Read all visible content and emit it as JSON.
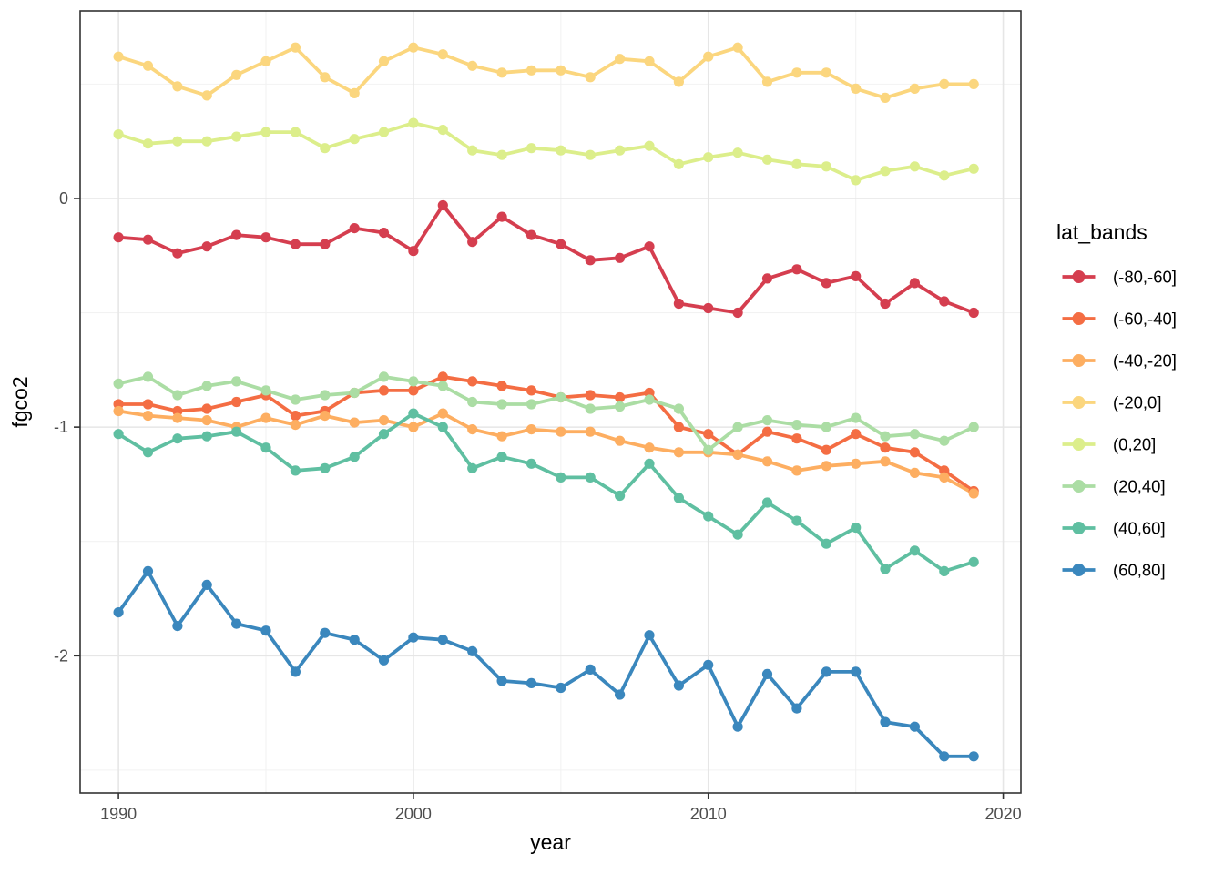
{
  "chart_data": {
    "type": "line",
    "title": "",
    "xlabel": "year",
    "ylabel": "fgco2",
    "legend_title": "lat_bands",
    "legend_position": "right",
    "grid": "on",
    "x": [
      1990,
      1991,
      1992,
      1993,
      1994,
      1995,
      1996,
      1997,
      1998,
      1999,
      2000,
      2001,
      2002,
      2003,
      2004,
      2005,
      2006,
      2007,
      2008,
      2009,
      2010,
      2011,
      2012,
      2013,
      2014,
      2015,
      2016,
      2017,
      2018,
      2019
    ],
    "series": [
      {
        "name": "(-80,-60]",
        "color": "#D53E4F",
        "values": [
          -0.17,
          -0.18,
          -0.24,
          -0.21,
          -0.16,
          -0.17,
          -0.2,
          -0.2,
          -0.13,
          -0.15,
          -0.23,
          -0.03,
          -0.19,
          -0.08,
          -0.16,
          -0.2,
          -0.27,
          -0.26,
          -0.21,
          -0.46,
          -0.48,
          -0.5,
          -0.35,
          -0.31,
          -0.37,
          -0.34,
          -0.46,
          -0.37,
          -0.45,
          -0.5
        ]
      },
      {
        "name": "(-60,-40]",
        "color": "#F46D43",
        "values": [
          -0.9,
          -0.9,
          -0.93,
          -0.92,
          -0.89,
          -0.86,
          -0.95,
          -0.93,
          -0.85,
          -0.84,
          -0.84,
          -0.78,
          -0.8,
          -0.82,
          -0.84,
          -0.87,
          -0.86,
          -0.87,
          -0.85,
          -1.0,
          -1.03,
          -1.12,
          -1.02,
          -1.05,
          -1.1,
          -1.03,
          -1.09,
          -1.11,
          -1.19,
          -1.28
        ]
      },
      {
        "name": "(-40,-20]",
        "color": "#FDAE61",
        "values": [
          -0.93,
          -0.95,
          -0.96,
          -0.97,
          -1.0,
          -0.96,
          -0.99,
          -0.95,
          -0.98,
          -0.97,
          -1.0,
          -0.94,
          -1.01,
          -1.04,
          -1.01,
          -1.02,
          -1.02,
          -1.06,
          -1.09,
          -1.11,
          -1.11,
          -1.12,
          -1.15,
          -1.19,
          -1.17,
          -1.16,
          -1.15,
          -1.2,
          -1.22,
          -1.29
        ]
      },
      {
        "name": "(-20,0]",
        "color": "#FBD67E",
        "values": [
          0.62,
          0.58,
          0.49,
          0.45,
          0.54,
          0.6,
          0.66,
          0.53,
          0.46,
          0.6,
          0.66,
          0.63,
          0.58,
          0.55,
          0.56,
          0.56,
          0.53,
          0.61,
          0.6,
          0.51,
          0.62,
          0.66,
          0.51,
          0.55,
          0.55,
          0.48,
          0.44,
          0.48,
          0.5,
          0.5
        ]
      },
      {
        "name": "(0,20]",
        "color": "#DCEE8B",
        "values": [
          0.28,
          0.24,
          0.25,
          0.25,
          0.27,
          0.29,
          0.29,
          0.22,
          0.26,
          0.29,
          0.33,
          0.3,
          0.21,
          0.19,
          0.22,
          0.21,
          0.19,
          0.21,
          0.23,
          0.15,
          0.18,
          0.2,
          0.17,
          0.15,
          0.14,
          0.08,
          0.12,
          0.14,
          0.1,
          0.13
        ]
      },
      {
        "name": "(20,40]",
        "color": "#ABDDA4",
        "values": [
          -0.81,
          -0.78,
          -0.86,
          -0.82,
          -0.8,
          -0.84,
          -0.88,
          -0.86,
          -0.85,
          -0.78,
          -0.8,
          -0.82,
          -0.89,
          -0.9,
          -0.9,
          -0.87,
          -0.92,
          -0.91,
          -0.88,
          -0.92,
          -1.1,
          -1.0,
          -0.97,
          -0.99,
          -1.0,
          -0.96,
          -1.04,
          -1.03,
          -1.06,
          -1.0
        ]
      },
      {
        "name": "(40,60]",
        "color": "#5FBFA1",
        "values": [
          -1.03,
          -1.11,
          -1.05,
          -1.04,
          -1.02,
          -1.09,
          -1.19,
          -1.18,
          -1.13,
          -1.03,
          -0.94,
          -1.0,
          -1.18,
          -1.13,
          -1.16,
          -1.22,
          -1.22,
          -1.3,
          -1.16,
          -1.31,
          -1.39,
          -1.47,
          -1.33,
          -1.41,
          -1.51,
          -1.44,
          -1.62,
          -1.54,
          -1.63,
          -1.59
        ]
      },
      {
        "name": "(60,80]",
        "color": "#3A87BD",
        "values": [
          -1.81,
          -1.63,
          -1.87,
          -1.69,
          -1.86,
          -1.89,
          -2.07,
          -1.9,
          -1.93,
          -2.02,
          -1.92,
          -1.93,
          -1.98,
          -2.11,
          -2.12,
          -2.14,
          -2.06,
          -2.17,
          -1.91,
          -2.13,
          -2.04,
          -2.31,
          -2.08,
          -2.23,
          -2.07,
          -2.07,
          -2.29,
          -2.31,
          -2.44,
          -2.44
        ]
      }
    ],
    "x_major_ticks": [
      1990,
      2000,
      2010,
      2020
    ],
    "x_minor_ticks": [
      1995,
      2005,
      2015
    ],
    "y_major_ticks": [
      0,
      -1,
      -2
    ],
    "y_minor_ticks": [
      0.5,
      -0.5,
      -1.5,
      -2.5
    ],
    "x_tick_labels": [
      "1990",
      "2000",
      "2010",
      "2020"
    ],
    "y_tick_labels": [
      "0",
      "-1",
      "-2"
    ],
    "xlim": [
      1988.7,
      2020.6
    ],
    "ylim": [
      -2.6,
      0.82
    ]
  },
  "style": {
    "background": "#FFFFFF",
    "panel_background": "#FFFFFF",
    "panel_border": "#333333",
    "grid_major": "#E6E6E6",
    "grid_minor": "#F2F2F2",
    "tick_color": "#333333",
    "tick_label_color": "#4D4D4D",
    "axis_title_color": "#000000",
    "legend_text_color": "#000000"
  }
}
